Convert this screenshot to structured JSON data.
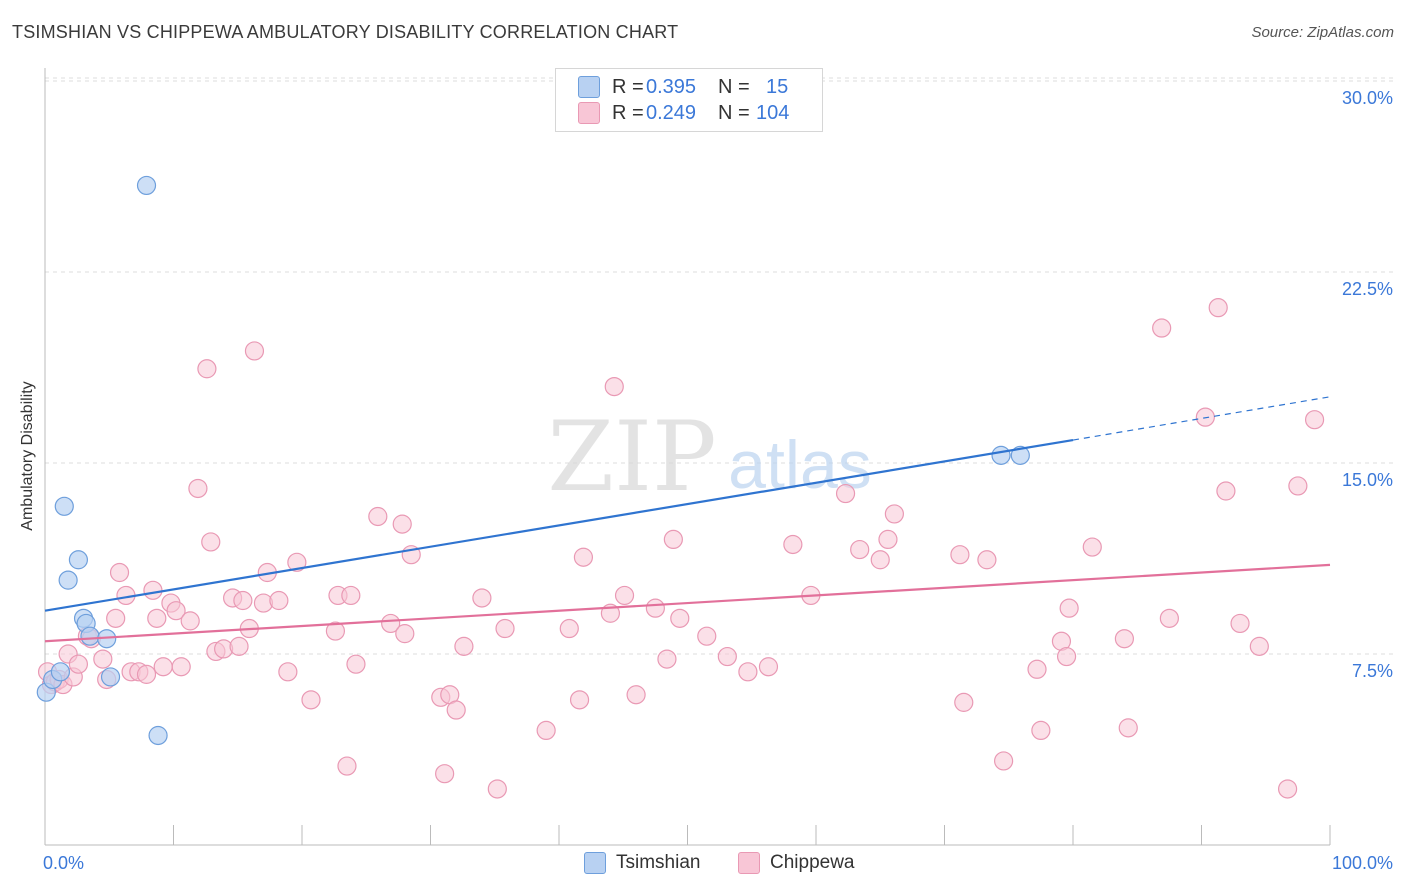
{
  "title": "TSIMSHIAN VS CHIPPEWA AMBULATORY DISABILITY CORRELATION CHART",
  "source": "Source: ZipAtlas.com",
  "watermark": {
    "zip": "ZIP",
    "atlas": "atlas"
  },
  "colors": {
    "tsimshian_fill": "#b8d1f2",
    "tsimshian_stroke": "#6e9fdc",
    "tsimshian_line": "#2f74d0",
    "chippewa_fill": "#f8c6d6",
    "chippewa_stroke": "#e999b4",
    "chippewa_line": "#e2709a",
    "tick_label": "#3b78d8",
    "grid": "#dddddd"
  },
  "legend": {
    "rows": [
      {
        "r_label": "R =",
        "r_value": "0.395",
        "n_label": "N =",
        "n_value": "15"
      },
      {
        "r_label": "R =",
        "r_value": "0.249",
        "n_label": "N =",
        "n_value": "104"
      }
    ]
  },
  "chart_data": {
    "type": "scatter",
    "title": "TSIMSHIAN VS CHIPPEWA AMBULATORY DISABILITY CORRELATION CHART",
    "xlabel": "",
    "ylabel": "Ambulatory Disability",
    "xlim": [
      0,
      100
    ],
    "ylim": [
      0,
      30
    ],
    "x_tick_labels": [
      "0.0%",
      "100.0%"
    ],
    "y_ticks": [
      7.5,
      15.0,
      22.5,
      30.0
    ],
    "y_tick_labels": [
      "7.5%",
      "15.0%",
      "22.5%",
      "30.0%"
    ],
    "grid": "horizontal dashed",
    "legend_position": "top-center",
    "series": [
      {
        "name": "Tsimshian",
        "R": 0.395,
        "N": 15,
        "points": [
          [
            0.1,
            6.0
          ],
          [
            0.6,
            6.5
          ],
          [
            1.2,
            6.8
          ],
          [
            1.5,
            13.3
          ],
          [
            1.8,
            10.4
          ],
          [
            2.6,
            11.2
          ],
          [
            3.0,
            8.9
          ],
          [
            3.2,
            8.7
          ],
          [
            3.5,
            8.2
          ],
          [
            4.8,
            8.1
          ],
          [
            5.1,
            6.6
          ],
          [
            7.9,
            25.9
          ],
          [
            8.8,
            4.3
          ],
          [
            74.4,
            15.3
          ],
          [
            75.9,
            15.3
          ]
        ],
        "trend": {
          "x0": 0,
          "y0": 9.2,
          "x1": 80,
          "y1": 15.9,
          "dashed_to_x": 100,
          "dashed_to_y": 17.6
        }
      },
      {
        "name": "Chippewa",
        "R": 0.249,
        "N": 104,
        "points": [
          [
            0.2,
            6.8
          ],
          [
            0.5,
            6.3
          ],
          [
            0.8,
            6.4
          ],
          [
            1.1,
            6.5
          ],
          [
            1.4,
            6.3
          ],
          [
            1.8,
            7.5
          ],
          [
            2.2,
            6.6
          ],
          [
            2.6,
            7.1
          ],
          [
            3.3,
            8.2
          ],
          [
            3.6,
            8.1
          ],
          [
            4.5,
            7.3
          ],
          [
            4.8,
            6.5
          ],
          [
            5.5,
            8.9
          ],
          [
            5.8,
            10.7
          ],
          [
            6.3,
            9.8
          ],
          [
            6.7,
            6.8
          ],
          [
            7.3,
            6.8
          ],
          [
            7.9,
            6.7
          ],
          [
            8.4,
            10.0
          ],
          [
            8.7,
            8.9
          ],
          [
            9.2,
            7.0
          ],
          [
            9.8,
            9.5
          ],
          [
            10.2,
            9.2
          ],
          [
            10.6,
            7.0
          ],
          [
            11.3,
            8.8
          ],
          [
            11.9,
            14.0
          ],
          [
            12.6,
            18.7
          ],
          [
            12.9,
            11.9
          ],
          [
            13.3,
            7.6
          ],
          [
            13.9,
            7.7
          ],
          [
            14.6,
            9.7
          ],
          [
            15.1,
            7.8
          ],
          [
            15.4,
            9.6
          ],
          [
            15.9,
            8.5
          ],
          [
            16.3,
            19.4
          ],
          [
            17.0,
            9.5
          ],
          [
            17.3,
            10.7
          ],
          [
            18.2,
            9.6
          ],
          [
            18.9,
            6.8
          ],
          [
            19.6,
            11.1
          ],
          [
            20.7,
            5.7
          ],
          [
            22.6,
            8.4
          ],
          [
            22.8,
            9.8
          ],
          [
            23.5,
            3.1
          ],
          [
            23.8,
            9.8
          ],
          [
            24.2,
            7.1
          ],
          [
            25.9,
            12.9
          ],
          [
            26.9,
            8.7
          ],
          [
            27.8,
            12.6
          ],
          [
            28.0,
            8.3
          ],
          [
            28.5,
            11.4
          ],
          [
            30.8,
            5.8
          ],
          [
            31.1,
            2.8
          ],
          [
            31.5,
            5.9
          ],
          [
            32.0,
            5.3
          ],
          [
            32.6,
            7.8
          ],
          [
            34.0,
            9.7
          ],
          [
            35.2,
            2.2
          ],
          [
            35.8,
            8.5
          ],
          [
            39.0,
            4.5
          ],
          [
            40.8,
            8.5
          ],
          [
            41.6,
            5.7
          ],
          [
            41.9,
            11.3
          ],
          [
            44.0,
            9.1
          ],
          [
            44.3,
            18.0
          ],
          [
            45.1,
            9.8
          ],
          [
            46.0,
            5.9
          ],
          [
            47.5,
            9.3
          ],
          [
            48.4,
            7.3
          ],
          [
            48.9,
            12.0
          ],
          [
            49.4,
            8.9
          ],
          [
            51.5,
            8.2
          ],
          [
            53.1,
            7.4
          ],
          [
            54.7,
            6.8
          ],
          [
            56.3,
            7.0
          ],
          [
            58.2,
            11.8
          ],
          [
            59.6,
            9.8
          ],
          [
            62.3,
            13.8
          ],
          [
            63.4,
            11.6
          ],
          [
            65.0,
            11.2
          ],
          [
            65.6,
            12.0
          ],
          [
            66.1,
            13.0
          ],
          [
            71.2,
            11.4
          ],
          [
            71.5,
            5.6
          ],
          [
            73.3,
            11.2
          ],
          [
            74.6,
            3.3
          ],
          [
            77.2,
            6.9
          ],
          [
            77.5,
            4.5
          ],
          [
            79.1,
            8.0
          ],
          [
            79.5,
            7.4
          ],
          [
            79.7,
            9.3
          ],
          [
            81.5,
            11.7
          ],
          [
            84.0,
            8.1
          ],
          [
            84.3,
            4.6
          ],
          [
            86.9,
            20.3
          ],
          [
            87.5,
            8.9
          ],
          [
            90.3,
            16.8
          ],
          [
            91.3,
            21.1
          ],
          [
            91.9,
            13.9
          ],
          [
            93.0,
            8.7
          ],
          [
            94.5,
            7.8
          ],
          [
            96.7,
            2.2
          ],
          [
            97.5,
            14.1
          ],
          [
            98.8,
            16.7
          ]
        ],
        "trend": {
          "x0": 0,
          "y0": 8.0,
          "x1": 100,
          "y1": 11.0
        }
      }
    ]
  },
  "bottom_legend": [
    {
      "label": "Tsimshian"
    },
    {
      "label": "Chippewa"
    }
  ]
}
